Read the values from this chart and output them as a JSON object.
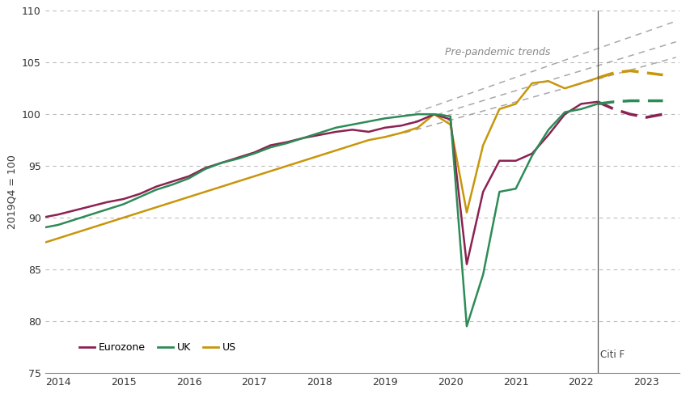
{
  "ylabel": "2019Q4 = 100",
  "ylim": [
    75,
    110
  ],
  "yticks": [
    75,
    80,
    85,
    90,
    95,
    100,
    105,
    110
  ],
  "xlim": [
    2013.8,
    2023.5
  ],
  "xticks": [
    2014,
    2015,
    2016,
    2017,
    2018,
    2019,
    2020,
    2021,
    2022,
    2023
  ],
  "vertical_line_x": 2022.25,
  "citi_f_label": "Citi F",
  "pre_pandemic_label": "Pre-pandemic trends",
  "colors": {
    "eurozone": "#8B2252",
    "uk": "#2E8B57",
    "us": "#C8960C",
    "trend": "#999999",
    "grid": "#BBBBBB"
  },
  "eurozone_solid": {
    "x": [
      2013.75,
      2014.0,
      2014.25,
      2014.5,
      2014.75,
      2015.0,
      2015.25,
      2015.5,
      2015.75,
      2016.0,
      2016.25,
      2016.5,
      2016.75,
      2017.0,
      2017.25,
      2017.5,
      2017.75,
      2018.0,
      2018.25,
      2018.5,
      2018.75,
      2019.0,
      2019.25,
      2019.5,
      2019.75,
      2020.0,
      2020.25,
      2020.5,
      2020.75,
      2021.0,
      2021.25,
      2021.5,
      2021.75,
      2022.0,
      2022.25
    ],
    "y": [
      90.0,
      90.3,
      90.7,
      91.1,
      91.5,
      91.8,
      92.3,
      93.0,
      93.5,
      94.0,
      94.8,
      95.3,
      95.8,
      96.3,
      97.0,
      97.3,
      97.7,
      98.0,
      98.3,
      98.5,
      98.3,
      98.7,
      98.9,
      99.3,
      100.0,
      99.5,
      85.5,
      92.5,
      95.5,
      95.5,
      96.2,
      98.0,
      100.0,
      101.0,
      101.2
    ]
  },
  "eurozone_dashed": {
    "x": [
      2022.25,
      2022.5,
      2022.75,
      2023.0,
      2023.25
    ],
    "y": [
      101.2,
      100.5,
      100.0,
      99.7,
      100.0
    ]
  },
  "uk_solid": {
    "x": [
      2013.75,
      2014.0,
      2014.25,
      2014.5,
      2014.75,
      2015.0,
      2015.25,
      2015.5,
      2015.75,
      2016.0,
      2016.25,
      2016.5,
      2016.75,
      2017.0,
      2017.25,
      2017.5,
      2017.75,
      2018.0,
      2018.25,
      2018.5,
      2018.75,
      2019.0,
      2019.25,
      2019.5,
      2019.75,
      2020.0,
      2020.25,
      2020.5,
      2020.75,
      2021.0,
      2021.25,
      2021.5,
      2021.75,
      2022.0,
      2022.25
    ],
    "y": [
      89.0,
      89.3,
      89.8,
      90.3,
      90.8,
      91.3,
      92.0,
      92.7,
      93.2,
      93.8,
      94.7,
      95.3,
      95.7,
      96.2,
      96.8,
      97.2,
      97.7,
      98.2,
      98.7,
      99.0,
      99.3,
      99.6,
      99.8,
      100.0,
      100.0,
      99.8,
      79.5,
      84.5,
      92.5,
      92.8,
      96.0,
      98.5,
      100.2,
      100.5,
      101.0
    ]
  },
  "uk_dashed": {
    "x": [
      2022.25,
      2022.5,
      2022.75,
      2023.0,
      2023.25
    ],
    "y": [
      101.0,
      101.2,
      101.3,
      101.3,
      101.3
    ]
  },
  "us_solid": {
    "x": [
      2013.75,
      2014.0,
      2014.25,
      2014.5,
      2014.75,
      2015.0,
      2015.25,
      2015.5,
      2015.75,
      2016.0,
      2016.25,
      2016.5,
      2016.75,
      2017.0,
      2017.25,
      2017.5,
      2017.75,
      2018.0,
      2018.25,
      2018.5,
      2018.75,
      2019.0,
      2019.25,
      2019.5,
      2019.75,
      2020.0,
      2020.25,
      2020.5,
      2020.75,
      2021.0,
      2021.25,
      2021.5,
      2021.75,
      2022.0,
      2022.25
    ],
    "y": [
      87.5,
      88.0,
      88.5,
      89.0,
      89.5,
      90.0,
      90.5,
      91.0,
      91.5,
      92.0,
      92.5,
      93.0,
      93.5,
      94.0,
      94.5,
      95.0,
      95.5,
      96.0,
      96.5,
      97.0,
      97.5,
      97.8,
      98.2,
      98.7,
      100.0,
      99.0,
      90.5,
      97.0,
      100.5,
      101.0,
      103.0,
      103.2,
      102.5,
      103.0,
      103.5
    ]
  },
  "us_dashed": {
    "x": [
      2022.25,
      2022.5,
      2022.75,
      2023.0,
      2023.25
    ],
    "y": [
      103.5,
      104.0,
      104.2,
      104.0,
      103.8
    ]
  },
  "trend_lines": [
    {
      "x": [
        2019.3,
        2023.45
      ],
      "y": [
        99.8,
        109.0
      ]
    },
    {
      "x": [
        2019.3,
        2023.45
      ],
      "y": [
        99.0,
        107.0
      ]
    },
    {
      "x": [
        2019.3,
        2023.45
      ],
      "y": [
        98.2,
        105.5
      ]
    }
  ],
  "background_color": "#FFFFFF",
  "figsize": [
    8.48,
    4.87
  ],
  "dpi": 100
}
